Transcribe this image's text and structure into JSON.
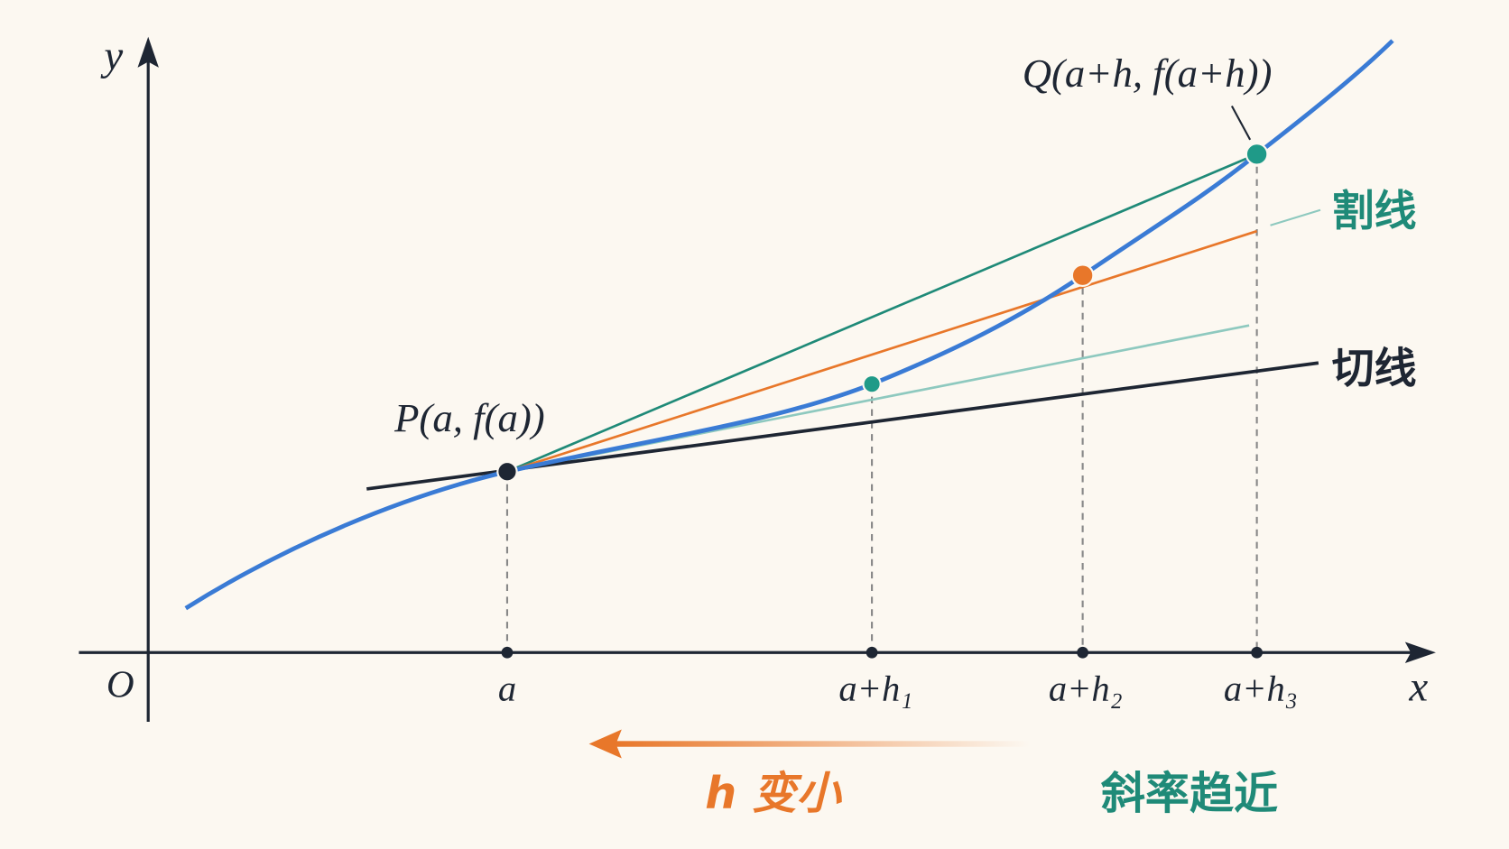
{
  "axes": {
    "y_label": "y",
    "x_label": "x",
    "origin": "O"
  },
  "points": {
    "p_label": "P(a, f(a))",
    "q_label": "Q(a+h, f(a+h))"
  },
  "lines": {
    "secant": "割线",
    "tangent": "切线"
  },
  "x_ticks": [
    "a",
    "a+h₁",
    "a+h₂",
    "a+h₃"
  ],
  "footer": {
    "h_shrinks": "h 变小",
    "slope_approaches": "斜率趋近"
  }
}
